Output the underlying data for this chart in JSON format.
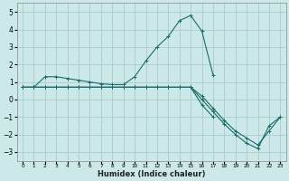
{
  "xlabel": "Humidex (Indice chaleur)",
  "ylabel": "",
  "background_color": "#cce8e8",
  "grid_color": "#aacccc",
  "line_color": "#1a6b6b",
  "xlim": [
    -0.5,
    23.5
  ],
  "ylim": [
    -3.5,
    5.5
  ],
  "xticks": [
    0,
    1,
    2,
    3,
    4,
    5,
    6,
    7,
    8,
    9,
    10,
    11,
    12,
    13,
    14,
    15,
    16,
    17,
    18,
    19,
    20,
    21,
    22,
    23
  ],
  "yticks": [
    -3,
    -2,
    -1,
    0,
    1,
    2,
    3,
    4,
    5
  ],
  "series": [
    {
      "x": [
        0,
        1,
        2,
        3,
        4,
        5,
        6,
        7,
        8,
        9,
        10,
        11,
        12,
        13,
        14,
        15,
        16,
        17
      ],
      "y": [
        0.7,
        0.7,
        1.3,
        1.3,
        1.2,
        1.1,
        1.0,
        0.9,
        0.85,
        0.85,
        1.3,
        2.2,
        3.0,
        3.6,
        4.5,
        4.8,
        3.9,
        1.4
      ]
    },
    {
      "x": [
        0,
        1,
        2,
        3,
        4,
        5,
        6,
        7,
        8,
        9,
        10,
        11,
        12,
        13,
        14,
        15,
        16,
        17,
        18,
        19,
        20,
        21,
        22,
        23
      ],
      "y": [
        0.7,
        0.7,
        0.7,
        0.7,
        0.7,
        0.7,
        0.7,
        0.7,
        0.7,
        0.7,
        0.7,
        0.7,
        0.7,
        0.7,
        0.7,
        0.7,
        0.2,
        -0.5,
        -1.2,
        -1.8,
        -2.2,
        -2.6,
        -1.8,
        -1.0
      ]
    },
    {
      "x": [
        0,
        1,
        2,
        3,
        4,
        5,
        6,
        7,
        8,
        9,
        10,
        11,
        12,
        13,
        14,
        15,
        16,
        17,
        18,
        19,
        20,
        21,
        22,
        23
      ],
      "y": [
        0.7,
        0.7,
        0.7,
        0.7,
        0.7,
        0.7,
        0.7,
        0.7,
        0.7,
        0.7,
        0.7,
        0.7,
        0.7,
        0.7,
        0.7,
        0.7,
        0.0,
        -0.7,
        -1.4,
        -2.0,
        -2.5,
        -2.8,
        -1.5,
        -1.0
      ]
    },
    {
      "x": [
        0,
        1,
        2,
        3,
        4,
        5,
        6,
        7,
        8,
        9,
        10,
        11,
        12,
        13,
        14,
        15,
        16,
        17
      ],
      "y": [
        0.7,
        0.7,
        0.7,
        0.7,
        0.7,
        0.7,
        0.7,
        0.7,
        0.7,
        0.7,
        0.7,
        0.7,
        0.7,
        0.7,
        0.7,
        0.7,
        -0.3,
        -1.0
      ]
    }
  ]
}
